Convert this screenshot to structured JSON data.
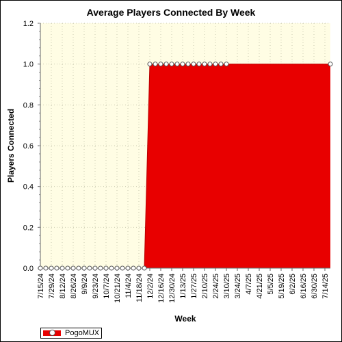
{
  "chart_data": {
    "type": "area",
    "title": "Average Players Connected By Week",
    "xlabel": "Week",
    "ylabel": "Players Connected",
    "ylim": [
      0,
      1.2
    ],
    "yticks": [
      "0.0",
      "0.2",
      "0.4",
      "0.6",
      "0.8",
      "1.0",
      "1.2"
    ],
    "grid": true,
    "legend_position": "bottom-left",
    "x_tick_labels": [
      "7/15/24",
      "7/29/24",
      "8/12/24",
      "8/26/24",
      "9/9/24",
      "9/23/24",
      "10/7/24",
      "10/21/24",
      "11/4/24",
      "11/18/24",
      "12/2/24",
      "12/16/24",
      "12/30/24",
      "1/13/25",
      "1/27/25",
      "2/10/25",
      "2/24/25",
      "3/10/25",
      "3/24/25",
      "4/7/25",
      "4/21/25",
      "5/5/25",
      "5/19/25",
      "6/2/25",
      "6/16/25",
      "6/30/25",
      "7/14/25"
    ],
    "series": [
      {
        "name": "PogoMUX",
        "color": "#e80000",
        "points": [
          {
            "x": "7/15/24",
            "y": 0
          },
          {
            "x": "7/22/24",
            "y": 0
          },
          {
            "x": "7/29/24",
            "y": 0
          },
          {
            "x": "8/5/24",
            "y": 0
          },
          {
            "x": "8/12/24",
            "y": 0
          },
          {
            "x": "8/19/24",
            "y": 0
          },
          {
            "x": "8/26/24",
            "y": 0
          },
          {
            "x": "9/2/24",
            "y": 0
          },
          {
            "x": "9/9/24",
            "y": 0
          },
          {
            "x": "9/16/24",
            "y": 0
          },
          {
            "x": "9/23/24",
            "y": 0
          },
          {
            "x": "9/30/24",
            "y": 0
          },
          {
            "x": "10/7/24",
            "y": 0
          },
          {
            "x": "10/14/24",
            "y": 0
          },
          {
            "x": "10/21/24",
            "y": 0
          },
          {
            "x": "10/28/24",
            "y": 0
          },
          {
            "x": "11/4/24",
            "y": 0
          },
          {
            "x": "11/11/24",
            "y": 0
          },
          {
            "x": "11/18/24",
            "y": 0
          },
          {
            "x": "11/25/24",
            "y": 0
          },
          {
            "x": "12/2/24",
            "y": 1
          },
          {
            "x": "12/9/24",
            "y": 1
          },
          {
            "x": "12/16/24",
            "y": 1
          },
          {
            "x": "12/23/24",
            "y": 1
          },
          {
            "x": "12/30/24",
            "y": 1
          },
          {
            "x": "1/6/25",
            "y": 1
          },
          {
            "x": "1/13/25",
            "y": 1
          },
          {
            "x": "1/20/25",
            "y": 1
          },
          {
            "x": "1/27/25",
            "y": 1
          },
          {
            "x": "2/3/25",
            "y": 1
          },
          {
            "x": "2/10/25",
            "y": 1
          },
          {
            "x": "2/17/25",
            "y": 1
          },
          {
            "x": "2/24/25",
            "y": 1
          },
          {
            "x": "3/3/25",
            "y": 1
          },
          {
            "x": "3/10/25",
            "y": 1
          },
          {
            "x": "7/21/25",
            "y": 1
          }
        ]
      }
    ]
  },
  "legend": {
    "label": "PogoMUX"
  }
}
